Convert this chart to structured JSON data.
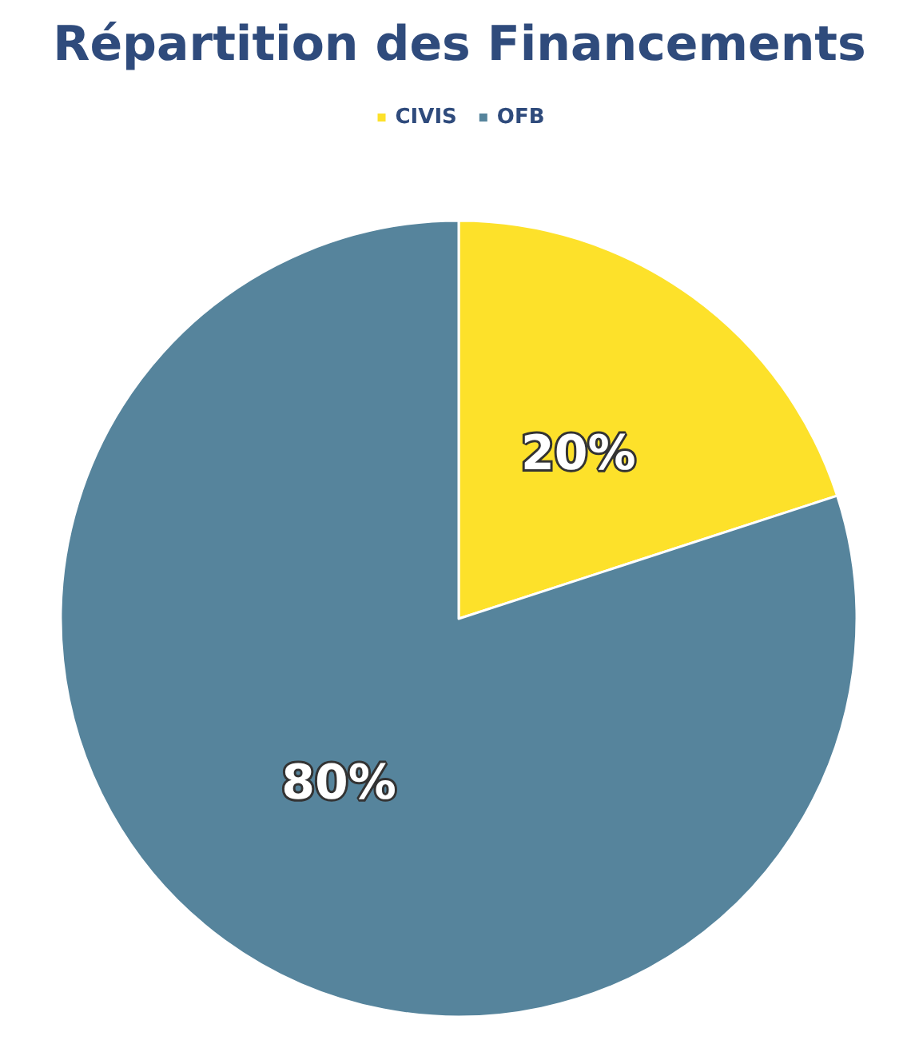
{
  "chart_data": {
    "type": "pie",
    "title": "Répartition des Financements",
    "categories": [
      "CIVIS",
      "OFB"
    ],
    "values": [
      20,
      80
    ],
    "colors": [
      "#fde12a",
      "#56849c"
    ],
    "value_labels": [
      "20%",
      "80%"
    ],
    "legend": "top"
  }
}
